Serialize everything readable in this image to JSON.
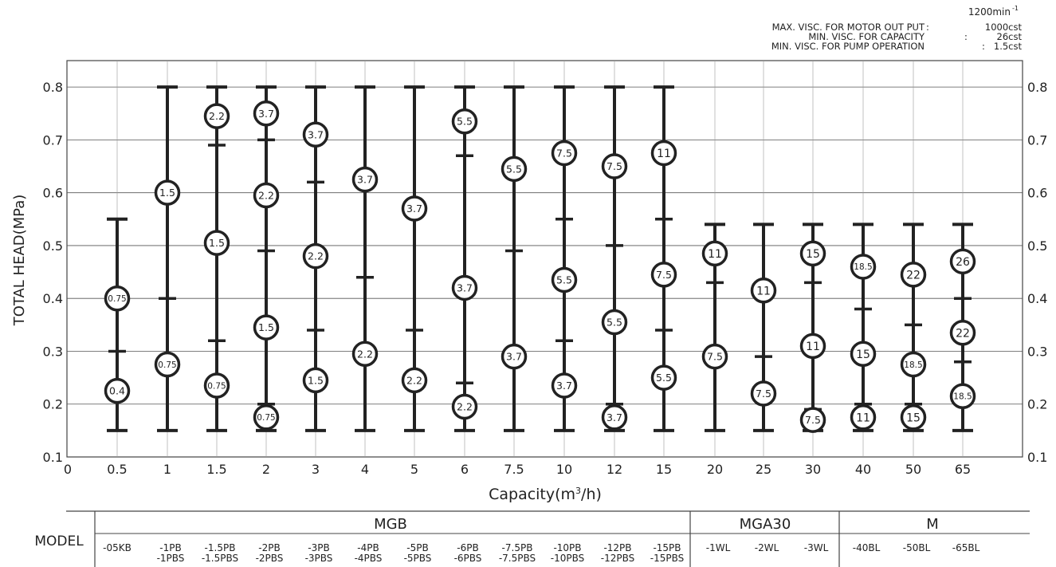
{
  "header": {
    "speed": "1200min",
    "speed_sup": "-1",
    "visc_lines": [
      {
        "label": "MAX. VISC. FOR MOTOR OUT PUT",
        "value": "1000cst"
      },
      {
        "label": "MIN. VISC. FOR CAPACITY",
        "value": "26cst"
      },
      {
        "label": "MIN. VISC. FOR PUMP OPERATION",
        "value": "1.5cst"
      }
    ]
  },
  "chart_data": {
    "type": "range",
    "ylabel": "TOTAL HEAD(MPa)",
    "xlabel_main": "Capacity(m",
    "xlabel_sup": "3",
    "xlabel_end": "/h)",
    "ylim": [
      0.1,
      0.85
    ],
    "yticks": [
      "0.1",
      "0.2",
      "0.3",
      "0.4",
      "0.5",
      "0.6",
      "0.7",
      "0.8"
    ],
    "x_origin_label": "0",
    "grid": true,
    "categories": [
      "0.5",
      "1",
      "1.5",
      "2",
      "3",
      "4",
      "5",
      "6",
      "7.5",
      "10",
      "12",
      "15",
      "20",
      "25",
      "30",
      "40",
      "50",
      "65"
    ],
    "columns": [
      {
        "capacity": "0.5",
        "min": 0.15,
        "max": 0.55,
        "ticks": [
          0.3
        ],
        "markers": [
          {
            "head": 0.4,
            "label": "0.75"
          },
          {
            "head": 0.225,
            "label": "0.4"
          }
        ]
      },
      {
        "capacity": "1",
        "min": 0.15,
        "max": 0.8,
        "ticks": [
          0.4
        ],
        "markers": [
          {
            "head": 0.6,
            "label": "1.5"
          },
          {
            "head": 0.275,
            "label": "0.75"
          }
        ]
      },
      {
        "capacity": "1.5",
        "min": 0.15,
        "max": 0.8,
        "ticks": [
          0.69,
          0.32
        ],
        "markers": [
          {
            "head": 0.745,
            "label": "2.2"
          },
          {
            "head": 0.505,
            "label": "1.5"
          },
          {
            "head": 0.235,
            "label": "0.75"
          }
        ]
      },
      {
        "capacity": "2",
        "min": 0.15,
        "max": 0.8,
        "ticks": [
          0.7,
          0.49,
          0.2
        ],
        "markers": [
          {
            "head": 0.75,
            "label": "3.7"
          },
          {
            "head": 0.595,
            "label": "2.2"
          },
          {
            "head": 0.345,
            "label": "1.5"
          },
          {
            "head": 0.175,
            "label": "0.75"
          }
        ]
      },
      {
        "capacity": "3",
        "min": 0.15,
        "max": 0.8,
        "ticks": [
          0.62,
          0.34
        ],
        "markers": [
          {
            "head": 0.71,
            "label": "3.7"
          },
          {
            "head": 0.48,
            "label": "2.2"
          },
          {
            "head": 0.245,
            "label": "1.5"
          }
        ]
      },
      {
        "capacity": "4",
        "min": 0.15,
        "max": 0.8,
        "ticks": [
          0.44
        ],
        "markers": [
          {
            "head": 0.625,
            "label": "3.7"
          },
          {
            "head": 0.295,
            "label": "2.2"
          }
        ]
      },
      {
        "capacity": "5",
        "min": 0.15,
        "max": 0.8,
        "ticks": [
          0.34
        ],
        "markers": [
          {
            "head": 0.57,
            "label": "3.7"
          },
          {
            "head": 0.245,
            "label": "2.2"
          }
        ]
      },
      {
        "capacity": "6",
        "min": 0.15,
        "max": 0.8,
        "ticks": [
          0.67,
          0.24
        ],
        "markers": [
          {
            "head": 0.735,
            "label": "5.5"
          },
          {
            "head": 0.42,
            "label": "3.7"
          },
          {
            "head": 0.195,
            "label": "2.2"
          }
        ]
      },
      {
        "capacity": "7.5",
        "min": 0.15,
        "max": 0.8,
        "ticks": [
          0.49
        ],
        "markers": [
          {
            "head": 0.645,
            "label": "5.5"
          },
          {
            "head": 0.29,
            "label": "3.7"
          }
        ]
      },
      {
        "capacity": "10",
        "min": 0.15,
        "max": 0.8,
        "ticks": [
          0.55,
          0.32
        ],
        "markers": [
          {
            "head": 0.675,
            "label": "7.5"
          },
          {
            "head": 0.435,
            "label": "5.5"
          },
          {
            "head": 0.235,
            "label": "3.7"
          }
        ]
      },
      {
        "capacity": "12",
        "min": 0.15,
        "max": 0.8,
        "ticks": [
          0.5,
          0.2
        ],
        "markers": [
          {
            "head": 0.65,
            "label": "7.5"
          },
          {
            "head": 0.355,
            "label": "5.5"
          },
          {
            "head": 0.175,
            "label": "3.7"
          }
        ]
      },
      {
        "capacity": "15",
        "min": 0.15,
        "max": 0.8,
        "ticks": [
          0.55,
          0.34
        ],
        "markers": [
          {
            "head": 0.675,
            "label": "11"
          },
          {
            "head": 0.445,
            "label": "7.5"
          },
          {
            "head": 0.25,
            "label": "5.5"
          }
        ]
      },
      {
        "capacity": "20",
        "min": 0.15,
        "max": 0.54,
        "ticks": [
          0.43
        ],
        "markers": [
          {
            "head": 0.485,
            "label": "11"
          },
          {
            "head": 0.29,
            "label": "7.5"
          }
        ]
      },
      {
        "capacity": "25",
        "min": 0.15,
        "max": 0.54,
        "ticks": [
          0.29
        ],
        "markers": [
          {
            "head": 0.415,
            "label": "11"
          },
          {
            "head": 0.22,
            "label": "7.5"
          }
        ]
      },
      {
        "capacity": "30",
        "min": 0.15,
        "max": 0.54,
        "ticks": [
          0.43,
          0.19
        ],
        "markers": [
          {
            "head": 0.485,
            "label": "15"
          },
          {
            "head": 0.31,
            "label": "11"
          },
          {
            "head": 0.17,
            "label": "7.5"
          }
        ]
      },
      {
        "capacity": "40",
        "min": 0.15,
        "max": 0.54,
        "ticks": [
          0.38,
          0.2
        ],
        "markers": [
          {
            "head": 0.46,
            "label": "18.5"
          },
          {
            "head": 0.295,
            "label": "15"
          },
          {
            "head": 0.175,
            "label": "11"
          }
        ]
      },
      {
        "capacity": "50",
        "min": 0.15,
        "max": 0.54,
        "ticks": [
          0.35,
          0.2
        ],
        "markers": [
          {
            "head": 0.445,
            "label": "22"
          },
          {
            "head": 0.275,
            "label": "18.5"
          },
          {
            "head": 0.175,
            "label": "15"
          }
        ]
      },
      {
        "capacity": "65",
        "min": 0.15,
        "max": 0.54,
        "ticks": [
          0.4,
          0.28
        ],
        "markers": [
          {
            "head": 0.47,
            "label": "26"
          },
          {
            "head": 0.335,
            "label": "22"
          },
          {
            "head": 0.215,
            "label": "18.5"
          }
        ]
      }
    ]
  },
  "model_table": {
    "label": "MODEL",
    "groups": [
      {
        "name": "MGB",
        "models": [
          [
            "-05KB"
          ],
          [
            "-1PB",
            "-1PBS"
          ],
          [
            "-1.5PB",
            "-1.5PBS"
          ],
          [
            "-2PB",
            "-2PBS"
          ],
          [
            "-3PB",
            "-3PBS"
          ],
          [
            "-4PB",
            "-4PBS"
          ],
          [
            "-5PB",
            "-5PBS"
          ],
          [
            "-6PB",
            "-6PBS"
          ],
          [
            "-7.5PB",
            "-7.5PBS"
          ],
          [
            "-10PB",
            "-10PBS"
          ],
          [
            "-12PB",
            "-12PBS"
          ],
          [
            "-15PB",
            "-15PBS"
          ]
        ]
      },
      {
        "name": "MGA30",
        "models": [
          [
            "-1WL"
          ],
          [
            "-2WL"
          ],
          [
            "-3WL"
          ]
        ]
      },
      {
        "name": "M",
        "models": [
          [
            "-40BL"
          ],
          [
            "-50BL"
          ],
          [
            "-65BL"
          ]
        ]
      }
    ]
  }
}
